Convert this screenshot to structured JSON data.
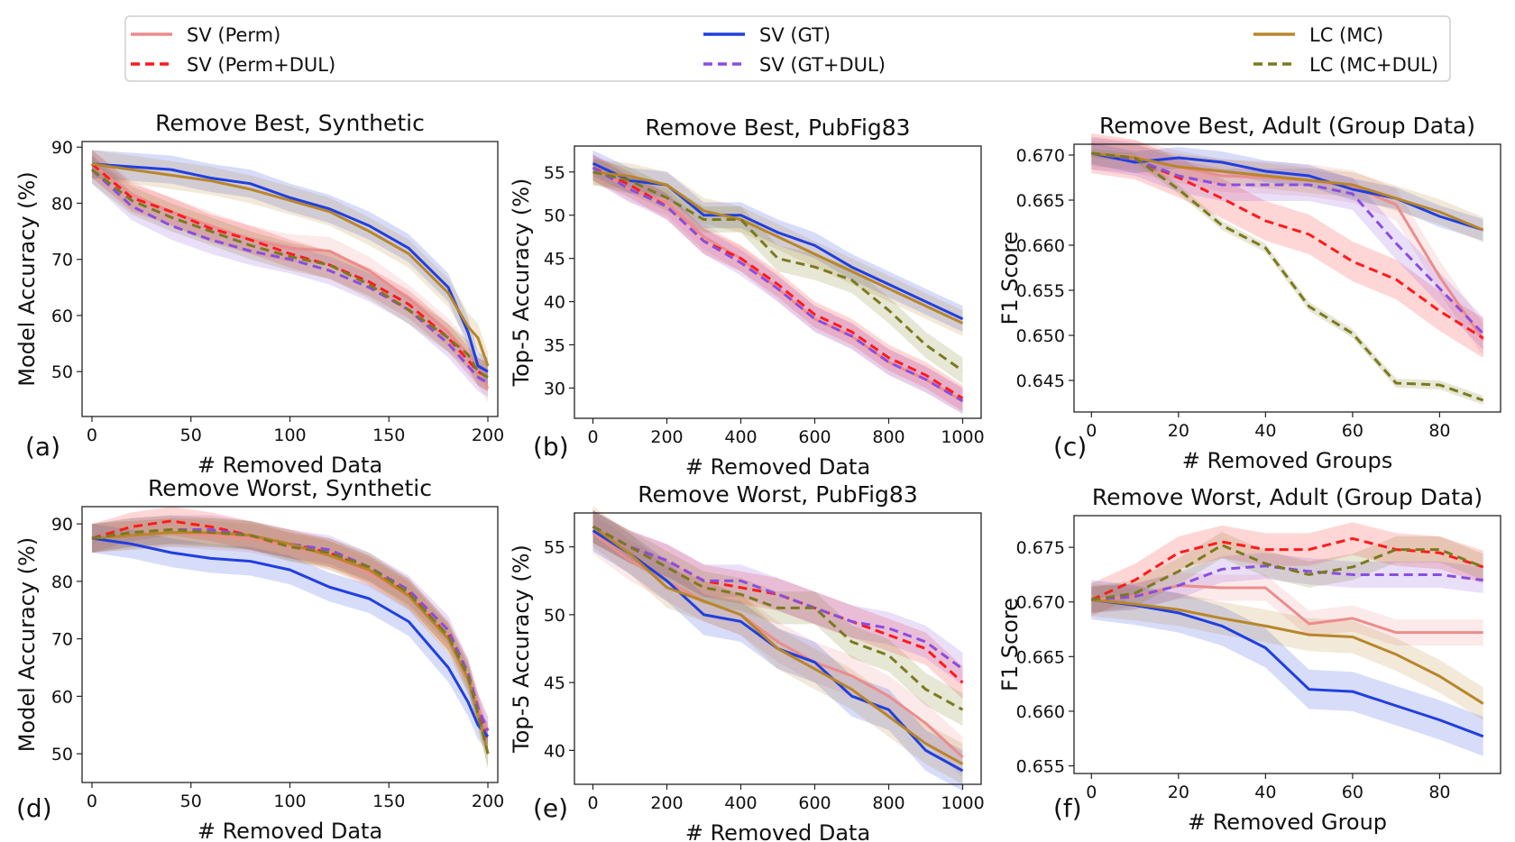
{
  "legend": {
    "entries": [
      {
        "label": "SV (Perm)",
        "color": "#ec8c8c",
        "dash": "solid"
      },
      {
        "label": "SV (Perm+DUL)",
        "color": "#ff1a1a",
        "dash": "dashed"
      },
      {
        "label": "SV (GT)",
        "color": "#1f3fe0",
        "dash": "solid"
      },
      {
        "label": "SV (GT+DUL)",
        "color": "#8a4de0",
        "dash": "dashed"
      },
      {
        "label": "LC (MC)",
        "color": "#b8862a",
        "dash": "solid"
      },
      {
        "label": "LC (MC+DUL)",
        "color": "#7a7a1e",
        "dash": "dashed"
      }
    ]
  },
  "chart_data": [
    {
      "type": "line",
      "letter": "(a)",
      "title": "Remove Best, Synthetic",
      "xlabel": "# Removed Data",
      "ylabel": "Model Accuracy (%)",
      "xlim": [
        -5,
        205
      ],
      "ylim": [
        42,
        91
      ],
      "xticks": [
        0,
        50,
        100,
        150,
        200
      ],
      "yticks": [
        50,
        60,
        70,
        80,
        90
      ],
      "ytick_decimals": 0,
      "x": [
        0,
        20,
        40,
        60,
        80,
        100,
        120,
        140,
        160,
        180,
        190,
        195,
        200
      ],
      "series": [
        {
          "name": "SV (Perm)",
          "values": [
            87,
            81.5,
            78.5,
            76,
            73.5,
            72,
            71.5,
            68,
            63,
            57,
            53,
            50,
            47
          ],
          "band": 2.5
        },
        {
          "name": "SV (Perm+DUL)",
          "values": [
            87,
            81,
            78.5,
            75.5,
            73.5,
            71,
            69,
            66,
            62,
            56,
            52,
            50,
            49
          ],
          "band": 2.5
        },
        {
          "name": "SV (GT)",
          "values": [
            87,
            86.5,
            86,
            84.5,
            83.5,
            81,
            79,
            76,
            72,
            65,
            57,
            51,
            50
          ],
          "band": 2.5
        },
        {
          "name": "SV (GT+DUL)",
          "values": [
            86,
            79.5,
            76,
            73.5,
            71.5,
            70,
            68,
            65,
            61,
            55,
            51,
            49,
            48
          ],
          "band": 2.5
        },
        {
          "name": "LC (MC)",
          "values": [
            87,
            86,
            85,
            84,
            82.5,
            80.5,
            78.5,
            75,
            71,
            64,
            58,
            56,
            51
          ],
          "band": 2.5
        },
        {
          "name": "LC (MC+DUL)",
          "values": [
            86,
            80.5,
            77.5,
            75,
            72.5,
            70.5,
            69,
            65.5,
            61,
            56,
            53,
            50,
            49
          ],
          "band": 2.5
        }
      ]
    },
    {
      "type": "line",
      "letter": "(b)",
      "title": "Remove Best, PubFig83",
      "xlabel": "# Removed Data",
      "ylabel": "Top-5 Accuracy (%)",
      "xlim": [
        -50,
        1050
      ],
      "ylim": [
        26.5,
        58
      ],
      "xticks": [
        0,
        200,
        400,
        600,
        800,
        1000
      ],
      "yticks": [
        30,
        35,
        40,
        45,
        50,
        55
      ],
      "ytick_decimals": 0,
      "x": [
        0,
        100,
        200,
        300,
        400,
        500,
        600,
        700,
        800,
        900,
        1000
      ],
      "series": [
        {
          "name": "SV (Perm)",
          "values": [
            55.5,
            53,
            51.5,
            47.5,
            45,
            41.5,
            38,
            36,
            33,
            31,
            28.5
          ],
          "band": 1.5
        },
        {
          "name": "SV (Perm+DUL)",
          "values": [
            55.5,
            53.5,
            51,
            47,
            45,
            42,
            38.5,
            36.5,
            33.5,
            31.5,
            28.8
          ],
          "band": 1.5
        },
        {
          "name": "SV (GT)",
          "values": [
            56,
            54,
            53.5,
            50,
            50,
            48,
            46.5,
            44,
            42,
            40,
            38
          ],
          "band": 1.5
        },
        {
          "name": "SV (GT+DUL)",
          "values": [
            55.5,
            53,
            51,
            47,
            44.5,
            41.5,
            38,
            36,
            33,
            31,
            28.5
          ],
          "band": 1.5
        },
        {
          "name": "LC (MC)",
          "values": [
            55,
            54.5,
            53.5,
            50.5,
            49.5,
            47.5,
            45.5,
            43.5,
            41.5,
            39.5,
            37.5
          ],
          "band": 1.5
        },
        {
          "name": "LC (MC+DUL)",
          "values": [
            55,
            54,
            52,
            49.5,
            49.5,
            45,
            44,
            42.5,
            39,
            35,
            32
          ],
          "band": 1.5
        }
      ]
    },
    {
      "type": "line",
      "letter": "(c)",
      "title": "Remove Best, Adult (Group Data)",
      "xlabel": "# Removed Groups",
      "ylabel": "F1 Score",
      "xlim": [
        -4,
        94
      ],
      "ylim": [
        0.6415,
        0.6712
      ],
      "xticks": [
        0,
        20,
        40,
        60,
        80
      ],
      "yticks": [
        0.645,
        0.65,
        0.655,
        0.66,
        0.665,
        0.67
      ],
      "ytick_decimals": 3,
      "x": [
        0,
        10,
        20,
        30,
        40,
        50,
        60,
        70,
        80,
        90
      ],
      "series": [
        {
          "name": "SV (Perm)",
          "values": [
            0.6702,
            0.6698,
            0.6687,
            0.6677,
            0.6675,
            0.6672,
            0.6665,
            0.6645,
            0.6565,
            0.6495
          ],
          "band": 0.0018
        },
        {
          "name": "SV (Perm+DUL)",
          "values": [
            0.6702,
            0.6695,
            0.6675,
            0.6652,
            0.6627,
            0.6612,
            0.6582,
            0.6562,
            0.6527,
            0.6497
          ],
          "band": 0.0022
        },
        {
          "name": "SV (GT)",
          "values": [
            0.6702,
            0.6692,
            0.6697,
            0.6692,
            0.6682,
            0.6677,
            0.6662,
            0.6652,
            0.6632,
            0.6617
          ],
          "band": 0.0012
        },
        {
          "name": "SV (GT+DUL)",
          "values": [
            0.6702,
            0.6695,
            0.6677,
            0.6667,
            0.6667,
            0.6667,
            0.6657,
            0.6602,
            0.6552,
            0.6502
          ],
          "band": 0.0018
        },
        {
          "name": "LC (MC)",
          "values": [
            0.6702,
            0.6697,
            0.6687,
            0.6682,
            0.6677,
            0.6672,
            0.6667,
            0.6652,
            0.6637,
            0.6617
          ],
          "band": 0.0014
        },
        {
          "name": "LC (MC+DUL)",
          "values": [
            0.6702,
            0.6697,
            0.6662,
            0.6622,
            0.6597,
            0.6532,
            0.6502,
            0.6447,
            0.6445,
            0.6428
          ],
          "band": 0.0005
        }
      ]
    },
    {
      "type": "line",
      "letter": "(d)",
      "title": "Remove Worst, Synthetic",
      "xlabel": "# Removed Data",
      "ylabel": "Model Accuracy (%)",
      "xlim": [
        -5,
        205
      ],
      "ylim": [
        45,
        93
      ],
      "xticks": [
        0,
        50,
        100,
        150,
        200
      ],
      "yticks": [
        50,
        60,
        70,
        80,
        90
      ],
      "ytick_decimals": 0,
      "x": [
        0,
        20,
        40,
        60,
        80,
        100,
        120,
        140,
        160,
        180,
        190,
        195,
        200
      ],
      "series": [
        {
          "name": "SV (Perm)",
          "values": [
            87.5,
            88,
            88.5,
            88,
            87.5,
            86,
            84.5,
            81.5,
            77.5,
            70,
            63,
            58,
            54
          ],
          "band": 2.5
        },
        {
          "name": "SV (Perm+DUL)",
          "values": [
            87.5,
            89.5,
            90.5,
            89.5,
            88,
            86.5,
            85,
            82,
            78,
            70.5,
            64,
            58,
            52
          ],
          "band": 2.5
        },
        {
          "name": "SV (GT)",
          "values": [
            87.5,
            86.5,
            85,
            84,
            83.5,
            82,
            79,
            77,
            73,
            65,
            59,
            55,
            53
          ],
          "band": 2.5
        },
        {
          "name": "SV (GT+DUL)",
          "values": [
            87.5,
            88.5,
            89,
            89,
            88,
            86.5,
            85.5,
            82.5,
            78.5,
            71.5,
            64,
            58,
            54
          ],
          "band": 2.5
        },
        {
          "name": "LC (MC)",
          "values": [
            87.5,
            88,
            88.5,
            88.5,
            88,
            86.5,
            84.5,
            82,
            77.5,
            70,
            63,
            57,
            50
          ],
          "band": 2.5
        },
        {
          "name": "LC (MC+DUL)",
          "values": [
            87.5,
            88.5,
            89,
            88.5,
            88,
            86,
            85,
            82.5,
            78,
            70.5,
            63.5,
            57,
            50
          ],
          "band": 2.5
        }
      ]
    },
    {
      "type": "line",
      "letter": "(e)",
      "title": "Remove Worst, PubFig83",
      "xlabel": "# Removed Data",
      "ylabel": "Top-5 Accuracy (%)",
      "xlim": [
        -50,
        1050
      ],
      "ylim": [
        37.5,
        57.5
      ],
      "xticks": [
        0,
        200,
        400,
        600,
        800,
        1000
      ],
      "yticks": [
        40,
        45,
        50,
        55
      ],
      "ytick_decimals": 0,
      "x": [
        0,
        100,
        200,
        300,
        400,
        500,
        600,
        700,
        800,
        900,
        1000
      ],
      "series": [
        {
          "name": "SV (Perm)",
          "values": [
            56,
            54,
            52.5,
            51,
            50,
            48,
            46.5,
            45.5,
            44,
            42,
            39.5
          ],
          "band": 1.5
        },
        {
          "name": "SV (Perm+DUL)",
          "values": [
            56.5,
            55,
            54,
            52.5,
            52,
            51.5,
            50.5,
            49.5,
            48.5,
            47.5,
            45
          ],
          "band": 1.2
        },
        {
          "name": "SV (GT)",
          "values": [
            56.2,
            54.5,
            52.5,
            50,
            49.5,
            47.5,
            46.5,
            44,
            43,
            40,
            38.5
          ],
          "band": 1.5
        },
        {
          "name": "SV (GT+DUL)",
          "values": [
            56.5,
            55,
            54,
            52.5,
            52.5,
            51.5,
            50.5,
            49.5,
            49,
            48,
            46
          ],
          "band": 1.2
        },
        {
          "name": "LC (MC)",
          "values": [
            56.5,
            54.5,
            52,
            51,
            50,
            47.5,
            46,
            44.5,
            42.5,
            40.5,
            39
          ],
          "band": 1.5
        },
        {
          "name": "LC (MC+DUL)",
          "values": [
            56.5,
            55,
            53.5,
            52,
            51.5,
            50.5,
            50.5,
            48,
            47,
            44.5,
            43
          ],
          "band": 1.2
        }
      ]
    },
    {
      "type": "line",
      "letter": "(f)",
      "title": "Remove Worst, Adult (Group Data)",
      "xlabel": "# Removed Group",
      "ylabel": "F1 Score",
      "xlim": [
        -4,
        94
      ],
      "ylim": [
        0.6543,
        0.6779
      ],
      "xticks": [
        0,
        20,
        40,
        60,
        80
      ],
      "yticks": [
        0.655,
        0.66,
        0.665,
        0.67,
        0.675
      ],
      "ytick_decimals": 3,
      "x": [
        0,
        10,
        20,
        30,
        40,
        50,
        60,
        70,
        80,
        90
      ],
      "series": [
        {
          "name": "SV (Perm)",
          "values": [
            0.6702,
            0.6705,
            0.6715,
            0.6713,
            0.6713,
            0.668,
            0.6685,
            0.6672,
            0.6672,
            0.6672
          ],
          "band": 0.0012
        },
        {
          "name": "SV (Perm+DUL)",
          "values": [
            0.6702,
            0.672,
            0.6745,
            0.6755,
            0.6748,
            0.6748,
            0.6758,
            0.6748,
            0.6745,
            0.6732
          ],
          "band": 0.0015
        },
        {
          "name": "SV (GT)",
          "values": [
            0.6702,
            0.6697,
            0.669,
            0.6678,
            0.6658,
            0.662,
            0.6618,
            0.6605,
            0.6592,
            0.6577
          ],
          "band": 0.0018
        },
        {
          "name": "SV (GT+DUL)",
          "values": [
            0.6702,
            0.6705,
            0.6715,
            0.673,
            0.6733,
            0.6728,
            0.6725,
            0.6725,
            0.6725,
            0.672
          ],
          "band": 0.0012
        },
        {
          "name": "LC (MC)",
          "values": [
            0.6702,
            0.6698,
            0.6693,
            0.6685,
            0.6678,
            0.667,
            0.6668,
            0.6652,
            0.6632,
            0.6607
          ],
          "band": 0.0015
        },
        {
          "name": "LC (MC+DUL)",
          "values": [
            0.6702,
            0.6708,
            0.6728,
            0.6752,
            0.6735,
            0.6725,
            0.6732,
            0.6748,
            0.6748,
            0.6732
          ],
          "band": 0.0012
        }
      ]
    }
  ]
}
